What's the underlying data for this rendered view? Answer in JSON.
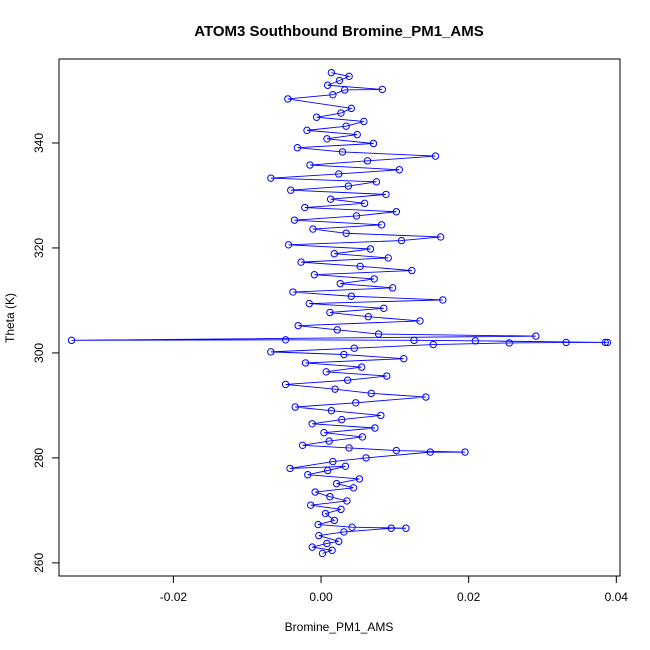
{
  "chart_data": {
    "type": "scatter",
    "title": "ATOM3 Southbound Bromine_PM1_AMS",
    "xlabel": "Bromine_PM1_AMS",
    "ylabel": "Theta (K)",
    "xlim": [
      -0.0355,
      0.0405
    ],
    "ylim": [
      257.5,
      356.0
    ],
    "xticks": [
      -0.02,
      0.0,
      0.02,
      0.04
    ],
    "xtick_labels": [
      "-0.02",
      "0.00",
      "0.02",
      "0.04"
    ],
    "yticks": [
      260,
      280,
      300,
      320,
      340
    ],
    "ytick_labels": [
      "260",
      "280",
      "300",
      "320",
      "340"
    ],
    "series_color": "#0000ff",
    "connected": true,
    "grid": false,
    "series": [
      {
        "points": [
          [
            0.0002,
            261.8
          ],
          [
            0.0015,
            262.4
          ],
          [
            -0.0012,
            263.0
          ],
          [
            0.0008,
            263.7
          ],
          [
            0.0024,
            264.1
          ],
          [
            -0.0003,
            265.2
          ],
          [
            0.0031,
            265.9
          ],
          [
            0.0095,
            266.6
          ],
          [
            0.0115,
            266.6
          ],
          [
            0.0042,
            266.8
          ],
          [
            -0.0004,
            267.3
          ],
          [
            0.0018,
            268.1
          ],
          [
            0.0006,
            269.4
          ],
          [
            0.0027,
            270.2
          ],
          [
            -0.0014,
            271.0
          ],
          [
            0.0035,
            271.8
          ],
          [
            0.0012,
            272.6
          ],
          [
            -0.0008,
            273.5
          ],
          [
            0.0044,
            274.3
          ],
          [
            0.0021,
            275.1
          ],
          [
            0.0052,
            276.0
          ],
          [
            -0.0018,
            276.8
          ],
          [
            0.0009,
            277.6
          ],
          [
            0.0033,
            278.4
          ],
          [
            -0.0042,
            278.0
          ],
          [
            0.0016,
            279.3
          ],
          [
            0.0061,
            280.0
          ],
          [
            0.0148,
            281.1
          ],
          [
            0.0195,
            281.1
          ],
          [
            0.0102,
            281.4
          ],
          [
            0.0038,
            281.9
          ],
          [
            -0.0025,
            282.4
          ],
          [
            0.0011,
            283.2
          ],
          [
            0.0056,
            284.0
          ],
          [
            0.0004,
            284.8
          ],
          [
            0.0073,
            285.7
          ],
          [
            -0.0012,
            286.5
          ],
          [
            0.0028,
            287.3
          ],
          [
            0.0081,
            288.1
          ],
          [
            0.0014,
            289.0
          ],
          [
            -0.0035,
            289.7
          ],
          [
            0.0047,
            290.5
          ],
          [
            0.0142,
            291.6
          ],
          [
            0.0068,
            292.3
          ],
          [
            0.0019,
            293.1
          ],
          [
            -0.0048,
            294.0
          ],
          [
            0.0036,
            294.8
          ],
          [
            0.0089,
            295.6
          ],
          [
            0.0007,
            296.4
          ],
          [
            0.0055,
            297.3
          ],
          [
            -0.0021,
            298.1
          ],
          [
            0.0112,
            298.9
          ],
          [
            0.0031,
            299.7
          ],
          [
            -0.0068,
            300.2
          ],
          [
            0.0045,
            300.9
          ],
          [
            0.0152,
            301.6
          ],
          [
            0.0255,
            301.9
          ],
          [
            0.0332,
            302.0
          ],
          [
            0.0385,
            302.0
          ],
          [
            0.0388,
            302.0
          ],
          [
            0.0209,
            302.3
          ],
          [
            0.0126,
            302.4
          ],
          [
            -0.0048,
            302.5
          ],
          [
            -0.0338,
            302.4
          ],
          [
            0.0291,
            303.2
          ],
          [
            0.0078,
            303.6
          ],
          [
            0.0022,
            304.4
          ],
          [
            -0.0031,
            305.2
          ],
          [
            0.0134,
            306.1
          ],
          [
            0.0064,
            306.9
          ],
          [
            0.0012,
            307.7
          ],
          [
            0.0085,
            308.5
          ],
          [
            -0.0016,
            309.4
          ],
          [
            0.0165,
            310.1
          ],
          [
            0.0041,
            310.8
          ],
          [
            -0.0038,
            311.6
          ],
          [
            0.0097,
            312.4
          ],
          [
            0.0026,
            313.2
          ],
          [
            0.0072,
            314.1
          ],
          [
            -0.0009,
            314.9
          ],
          [
            0.0123,
            315.7
          ],
          [
            0.0053,
            316.5
          ],
          [
            -0.0027,
            317.3
          ],
          [
            0.0091,
            318.1
          ],
          [
            0.0018,
            318.9
          ],
          [
            0.0067,
            319.8
          ],
          [
            -0.0044,
            320.6
          ],
          [
            0.0109,
            321.4
          ],
          [
            0.0162,
            322.1
          ],
          [
            0.0034,
            322.8
          ],
          [
            -0.0011,
            323.6
          ],
          [
            0.0082,
            324.4
          ],
          [
            -0.0036,
            325.3
          ],
          [
            0.0048,
            326.1
          ],
          [
            0.0102,
            326.9
          ],
          [
            -0.0022,
            327.7
          ],
          [
            0.0059,
            328.5
          ],
          [
            0.0013,
            329.3
          ],
          [
            0.0088,
            330.2
          ],
          [
            -0.0041,
            331.0
          ],
          [
            0.0037,
            331.8
          ],
          [
            0.0075,
            332.6
          ],
          [
            -0.0068,
            333.3
          ],
          [
            0.0024,
            334.1
          ],
          [
            0.0106,
            334.9
          ],
          [
            -0.0015,
            335.8
          ],
          [
            0.0063,
            336.6
          ],
          [
            0.0155,
            337.5
          ],
          [
            0.0029,
            338.3
          ],
          [
            -0.0032,
            339.1
          ],
          [
            0.0071,
            339.9
          ],
          [
            0.0008,
            340.8
          ],
          [
            0.0049,
            341.6
          ],
          [
            -0.0019,
            342.4
          ],
          [
            0.0034,
            343.2
          ],
          [
            0.0058,
            344.1
          ],
          [
            -0.0006,
            344.9
          ],
          [
            0.0027,
            345.7
          ],
          [
            0.0041,
            346.6
          ],
          [
            -0.0045,
            348.4
          ],
          [
            0.0016,
            349.2
          ],
          [
            0.0032,
            350.1
          ],
          [
            0.0083,
            350.2
          ],
          [
            0.0009,
            351.0
          ],
          [
            0.0025,
            351.9
          ],
          [
            0.0038,
            352.7
          ],
          [
            0.0014,
            353.4
          ]
        ]
      }
    ]
  }
}
